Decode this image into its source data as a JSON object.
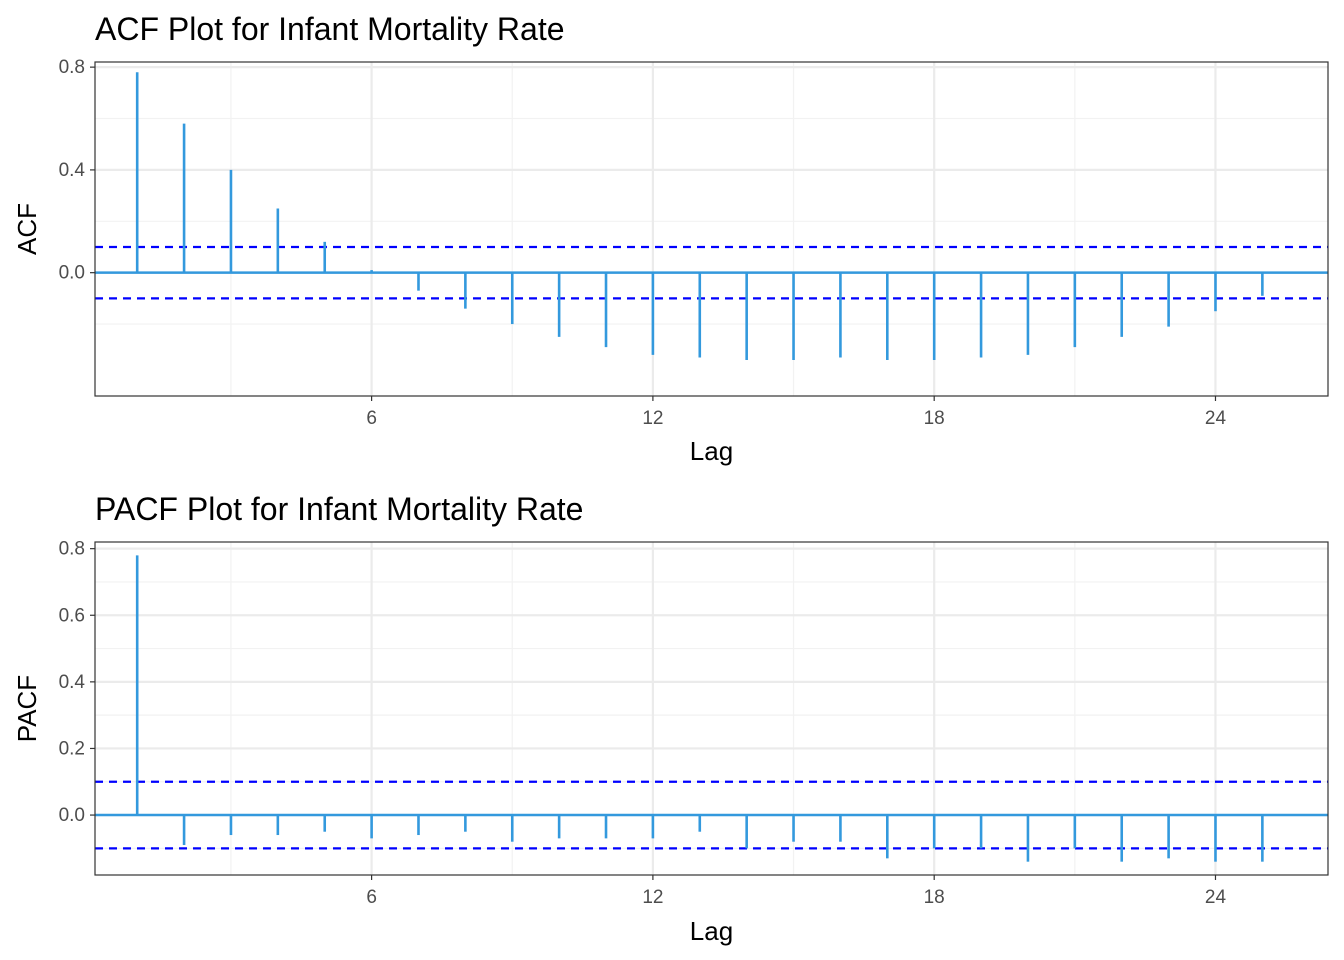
{
  "colors": {
    "bar": "#3399dd",
    "ci_line": "#0000ff",
    "grid_major": "#ebebeb",
    "grid_minor": "#f2f2f2",
    "panel_border": "#333333",
    "tick_text": "#4d4d4d"
  },
  "chart_data": [
    {
      "type": "bar",
      "title": "ACF Plot for Infant Mortality Rate",
      "xlabel": "Lag",
      "ylabel": "ACF",
      "xlim": [
        0.1,
        26.4
      ],
      "ylim": [
        -0.48,
        0.82
      ],
      "x_ticks": [
        6,
        12,
        18,
        24
      ],
      "y_ticks": [
        0.0,
        0.4,
        0.8
      ],
      "y_tick_labels": [
        "0.0",
        "0.4",
        "0.8"
      ],
      "confidence_bounds": [
        0.1,
        -0.1
      ],
      "grid": true,
      "lags": [
        1,
        2,
        3,
        4,
        5,
        6,
        7,
        8,
        9,
        10,
        11,
        12,
        13,
        14,
        15,
        16,
        17,
        18,
        19,
        20,
        21,
        22,
        23,
        24,
        25
      ],
      "values": [
        0.78,
        0.58,
        0.4,
        0.25,
        0.12,
        0.01,
        -0.07,
        -0.14,
        -0.2,
        -0.25,
        -0.29,
        -0.32,
        -0.33,
        -0.34,
        -0.34,
        -0.33,
        -0.34,
        -0.34,
        -0.33,
        -0.32,
        -0.29,
        -0.25,
        -0.21,
        -0.15,
        -0.09
      ]
    },
    {
      "type": "bar",
      "title": "PACF Plot for Infant Mortality Rate",
      "xlabel": "Lag",
      "ylabel": "PACF",
      "xlim": [
        0.1,
        26.4
      ],
      "ylim": [
        -0.18,
        0.82
      ],
      "x_ticks": [
        6,
        12,
        18,
        24
      ],
      "y_ticks": [
        0.0,
        0.2,
        0.4,
        0.6,
        0.8
      ],
      "y_tick_labels": [
        "0.0",
        "0.2",
        "0.4",
        "0.6",
        "0.8"
      ],
      "confidence_bounds": [
        0.1,
        -0.1
      ],
      "grid": true,
      "lags": [
        1,
        2,
        3,
        4,
        5,
        6,
        7,
        8,
        9,
        10,
        11,
        12,
        13,
        14,
        15,
        16,
        17,
        18,
        19,
        20,
        21,
        22,
        23,
        24,
        25
      ],
      "values": [
        0.78,
        -0.09,
        -0.06,
        -0.06,
        -0.05,
        -0.07,
        -0.06,
        -0.05,
        -0.08,
        -0.07,
        -0.07,
        -0.07,
        -0.05,
        -0.1,
        -0.08,
        -0.08,
        -0.13,
        -0.1,
        -0.1,
        -0.14,
        -0.1,
        -0.14,
        -0.13,
        -0.14,
        -0.14
      ]
    }
  ]
}
